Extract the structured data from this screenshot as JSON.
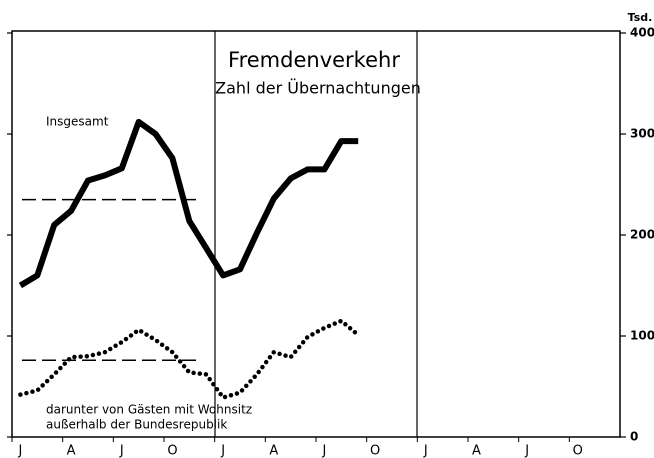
{
  "chart_data": {
    "type": "line",
    "title": "Fremdenverkehr",
    "subtitle": "Zahl der Übernachtungen",
    "y_unit": "Tsd.",
    "categories": [
      "J",
      null,
      null,
      "A",
      null,
      null,
      "J",
      null,
      null,
      "O",
      null,
      null,
      "J",
      null,
      null,
      "A",
      null,
      null,
      "J",
      null,
      null,
      "O",
      null,
      null,
      "J",
      null,
      null,
      "A",
      null,
      null,
      "J",
      null,
      null,
      "O",
      null,
      null
    ],
    "series": [
      {
        "name": "Insgesamt",
        "color": "#000000",
        "style": "solid",
        "values": [
          150,
          160,
          210,
          224,
          254,
          259,
          266,
          312,
          300,
          276,
          214,
          187,
          160,
          166,
          202,
          236,
          256,
          265,
          265,
          293,
          293,
          null,
          null,
          null,
          null,
          null,
          null,
          null,
          null,
          null,
          null,
          null,
          null,
          null,
          null,
          null
        ]
      },
      {
        "name": "darunter von Gästen mit Wohnsitz außerhalb der Bundesrepublik",
        "name_lines": [
          "darunter von Gästen mit Wohnsitz",
          "außerhalb der Bundesrepublik"
        ],
        "color": "#000000",
        "style": "dotted",
        "values": [
          42,
          46,
          62,
          79,
          80,
          84,
          94,
          106,
          96,
          84,
          64,
          62,
          39,
          44,
          62,
          84,
          79,
          99,
          108,
          115,
          101,
          null,
          null,
          null,
          null,
          null,
          null,
          null,
          null,
          null,
          null,
          null,
          null,
          null,
          null,
          null
        ]
      }
    ],
    "reference_lines": [
      {
        "value": 235,
        "color": "#000000"
      },
      {
        "value": 76,
        "color": "#000000"
      }
    ],
    "ylim": [
      0,
      400
    ],
    "yticks": [
      0,
      100,
      200,
      300,
      400
    ],
    "y_axis_side": "right",
    "grid": false
  }
}
